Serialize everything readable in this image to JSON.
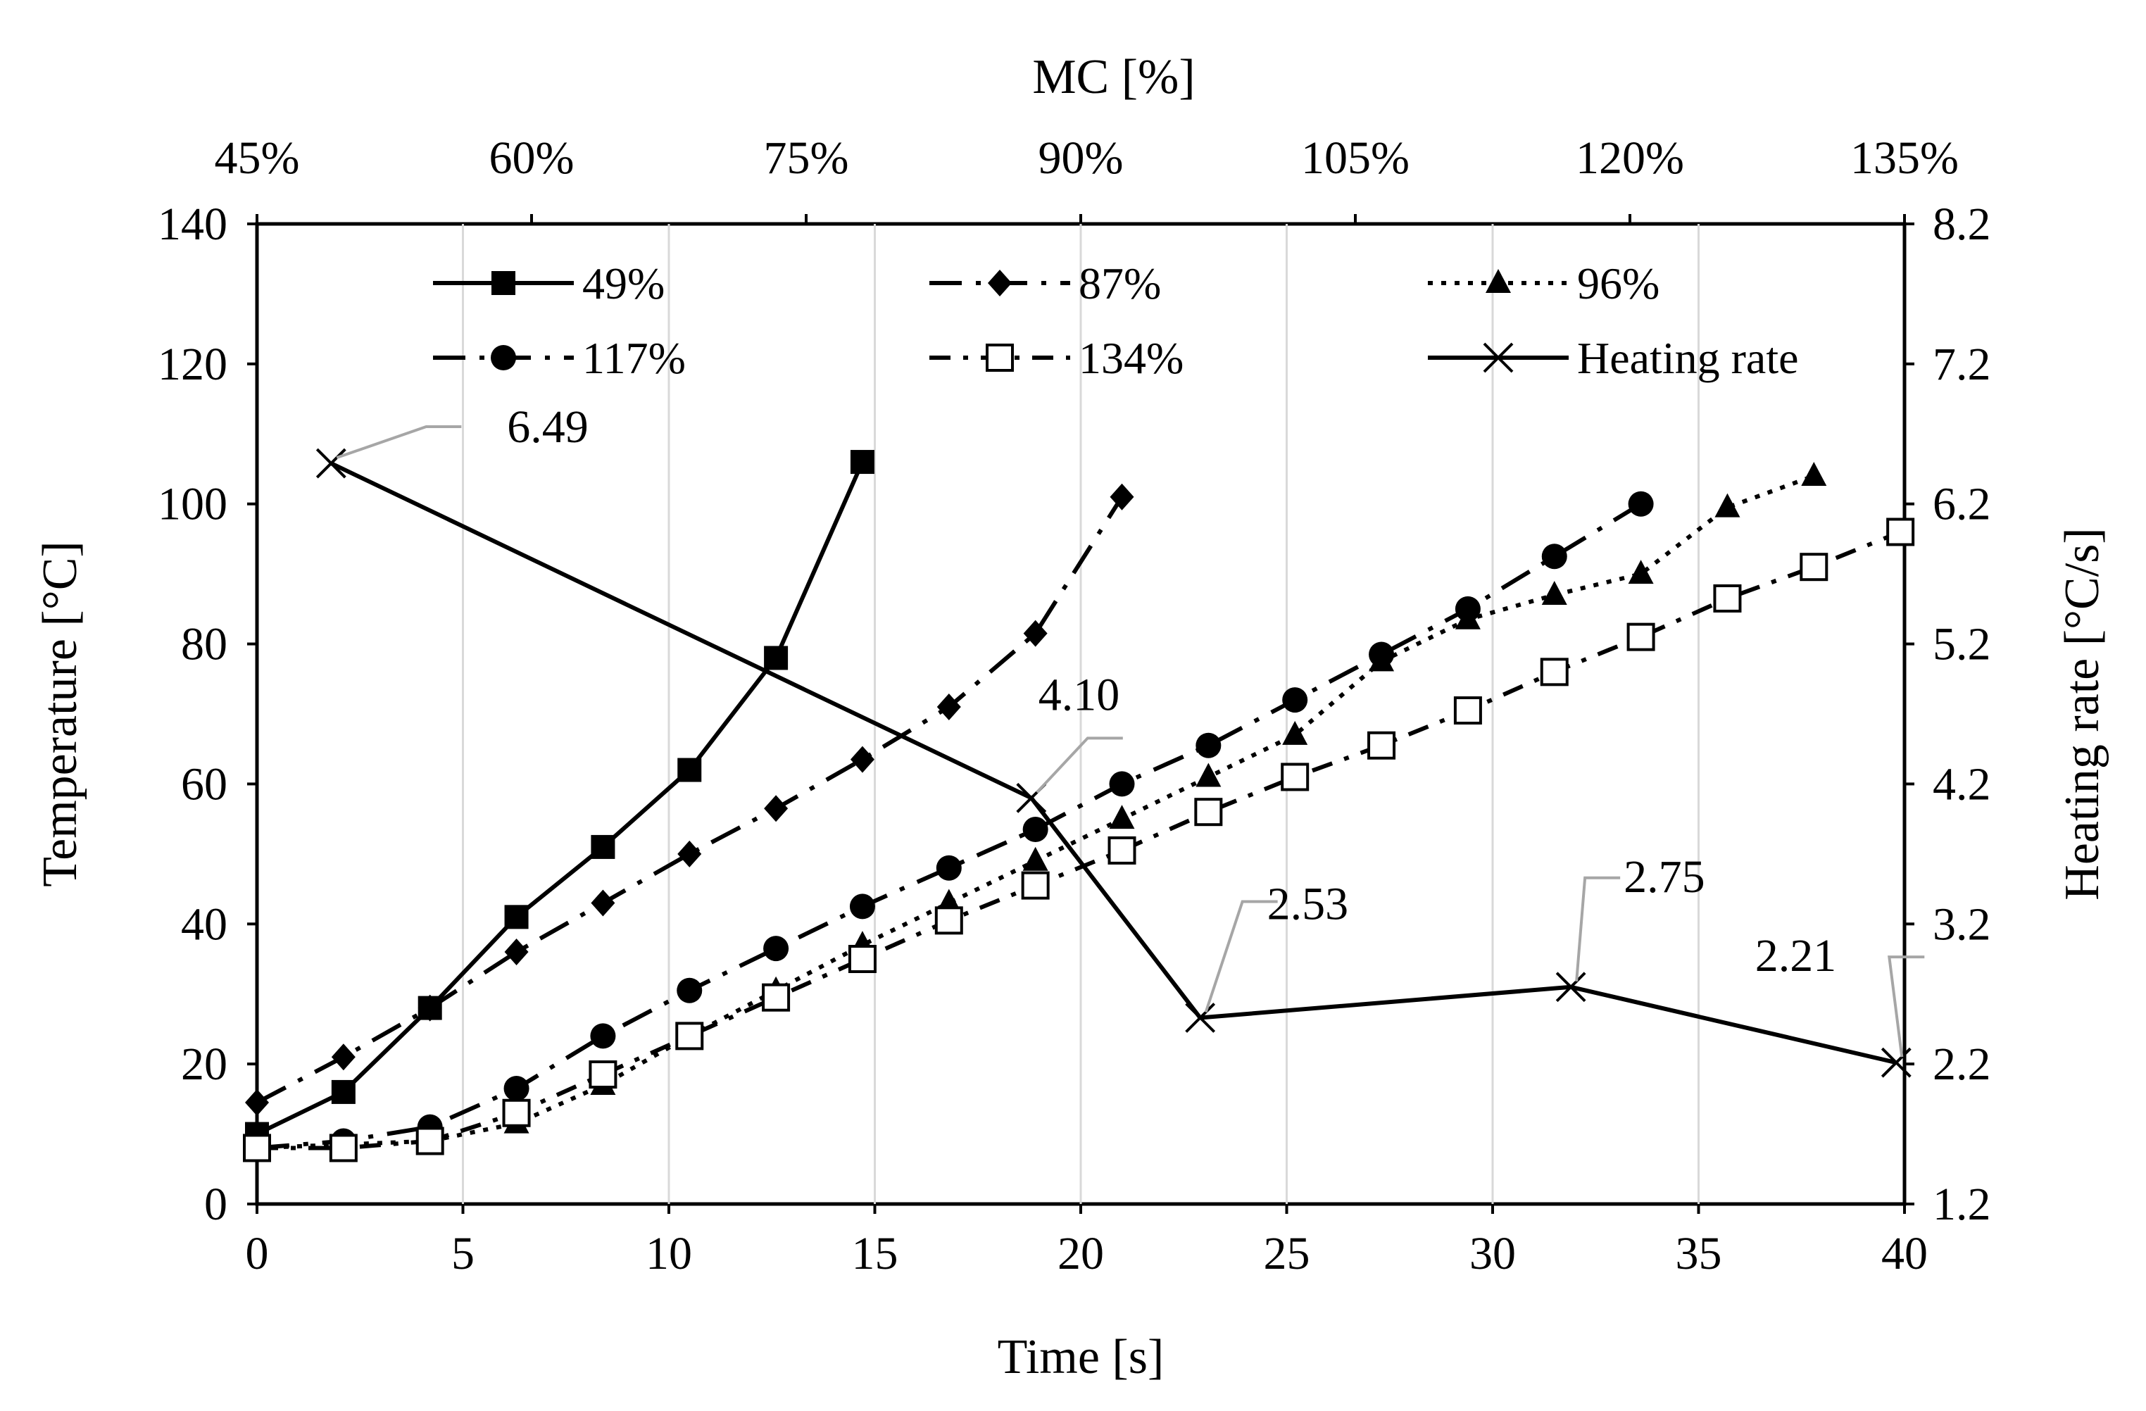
{
  "chart_data": {
    "type": "line",
    "title": "",
    "xlabel": "Time [s]",
    "ylabel": "Temperature [°C]",
    "y2label": "Heating rate [°C/s]",
    "x2label": "MC [%]",
    "xlim": [
      0,
      40
    ],
    "ylim": [
      0,
      140
    ],
    "y2lim": [
      1.2,
      8.2
    ],
    "x2lim": [
      45,
      135
    ],
    "x_ticks": [
      "0",
      "5",
      "10",
      "15",
      "20",
      "25",
      "30",
      "35",
      "40"
    ],
    "y_ticks": [
      "0",
      "20",
      "40",
      "60",
      "80",
      "100",
      "120",
      "140"
    ],
    "y2_ticks": [
      "1.2",
      "2.2",
      "3.2",
      "4.2",
      "5.2",
      "6.2",
      "7.2",
      "8.2"
    ],
    "x2_ticks": [
      "45%",
      "60%",
      "75%",
      "90%",
      "105%",
      "120%",
      "135%"
    ],
    "grid": "vertical",
    "legend_position": "top",
    "series": [
      {
        "name": "49%",
        "marker": "square-filled",
        "dash": "solid",
        "x": [
          0,
          2.1,
          4.2,
          6.3,
          8.4,
          10.5,
          12.6,
          14.7
        ],
        "y": [
          10,
          16,
          28,
          41,
          51,
          62,
          78,
          106
        ]
      },
      {
        "name": "87%",
        "marker": "diamond-filled",
        "dash": "long-dash-dot",
        "x": [
          0,
          2.1,
          4.2,
          6.3,
          8.4,
          10.5,
          12.6,
          14.7,
          16.8,
          18.9,
          21
        ],
        "y": [
          14.5,
          21,
          28,
          36,
          43,
          50,
          56.5,
          63.5,
          71,
          81.5,
          101
        ]
      },
      {
        "name": "96%",
        "marker": "triangle-filled",
        "dash": "dotted",
        "x": [
          0,
          2.1,
          4.2,
          6.3,
          8.4,
          10.5,
          12.6,
          14.7,
          16.8,
          18.9,
          21,
          23.1,
          25.2,
          27.3,
          29.4,
          31.5,
          33.6,
          35.7,
          37.8
        ],
        "y": [
          8,
          8.5,
          9,
          11.5,
          17,
          24,
          30.5,
          37,
          43,
          49,
          55,
          61,
          67,
          77.5,
          83.5,
          87,
          90,
          99.5,
          104
        ]
      },
      {
        "name": "117%",
        "marker": "circle-filled",
        "dash": "long-dash-dot",
        "x": [
          0,
          2.1,
          4.2,
          6.3,
          8.4,
          10.5,
          12.6,
          14.7,
          16.8,
          18.9,
          21,
          23.1,
          25.2,
          27.3,
          29.4,
          31.5,
          33.6
        ],
        "y": [
          8,
          9,
          11,
          16.5,
          24,
          30.5,
          36.5,
          42.5,
          48,
          53.5,
          60,
          65.5,
          72,
          78.5,
          85,
          92.5,
          100
        ]
      },
      {
        "name": "134%",
        "marker": "square-open",
        "dash": "dash-dot",
        "x": [
          0,
          2.1,
          4.2,
          6.3,
          8.4,
          10.5,
          12.6,
          14.7,
          16.8,
          18.9,
          21,
          23.1,
          25.2,
          27.3,
          29.4,
          31.5,
          33.6,
          35.7,
          37.8,
          39.9
        ],
        "y": [
          8,
          8,
          9,
          13,
          18.5,
          24,
          29.5,
          35,
          40.5,
          45.5,
          50.5,
          56,
          61,
          65.5,
          70.5,
          76,
          81,
          86.5,
          91,
          96
        ]
      },
      {
        "name": "Heating rate",
        "marker": "x",
        "dash": "solid",
        "axis": "secondary",
        "x": [
          1.8,
          18.8,
          22.9,
          31.9,
          39.8
        ],
        "y": [
          6.49,
          4.1,
          2.53,
          2.75,
          2.21
        ]
      }
    ],
    "annotations": [
      "6.49",
      "4.10",
      "2.53",
      "2.75",
      "2.21"
    ]
  }
}
